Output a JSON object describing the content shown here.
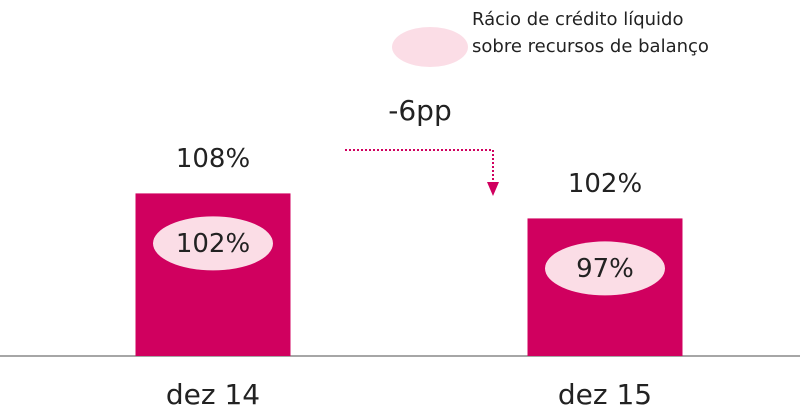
{
  "chart_data": {
    "type": "bar",
    "categories": [
      "dez 14",
      "dez 15"
    ],
    "series": [
      {
        "values": [
          108,
          102
        ],
        "value_labels": [
          "108%",
          "102%"
        ],
        "color": "#d0005f"
      },
      {
        "name": "Rácio de crédito líquido\nsobre recursos de balanço",
        "values": [
          102,
          97
        ],
        "value_labels": [
          "102%",
          "97%"
        ],
        "color": "#fbdde6"
      }
    ],
    "ylim": [
      69,
      140
    ],
    "annotation": "-6pp"
  }
}
